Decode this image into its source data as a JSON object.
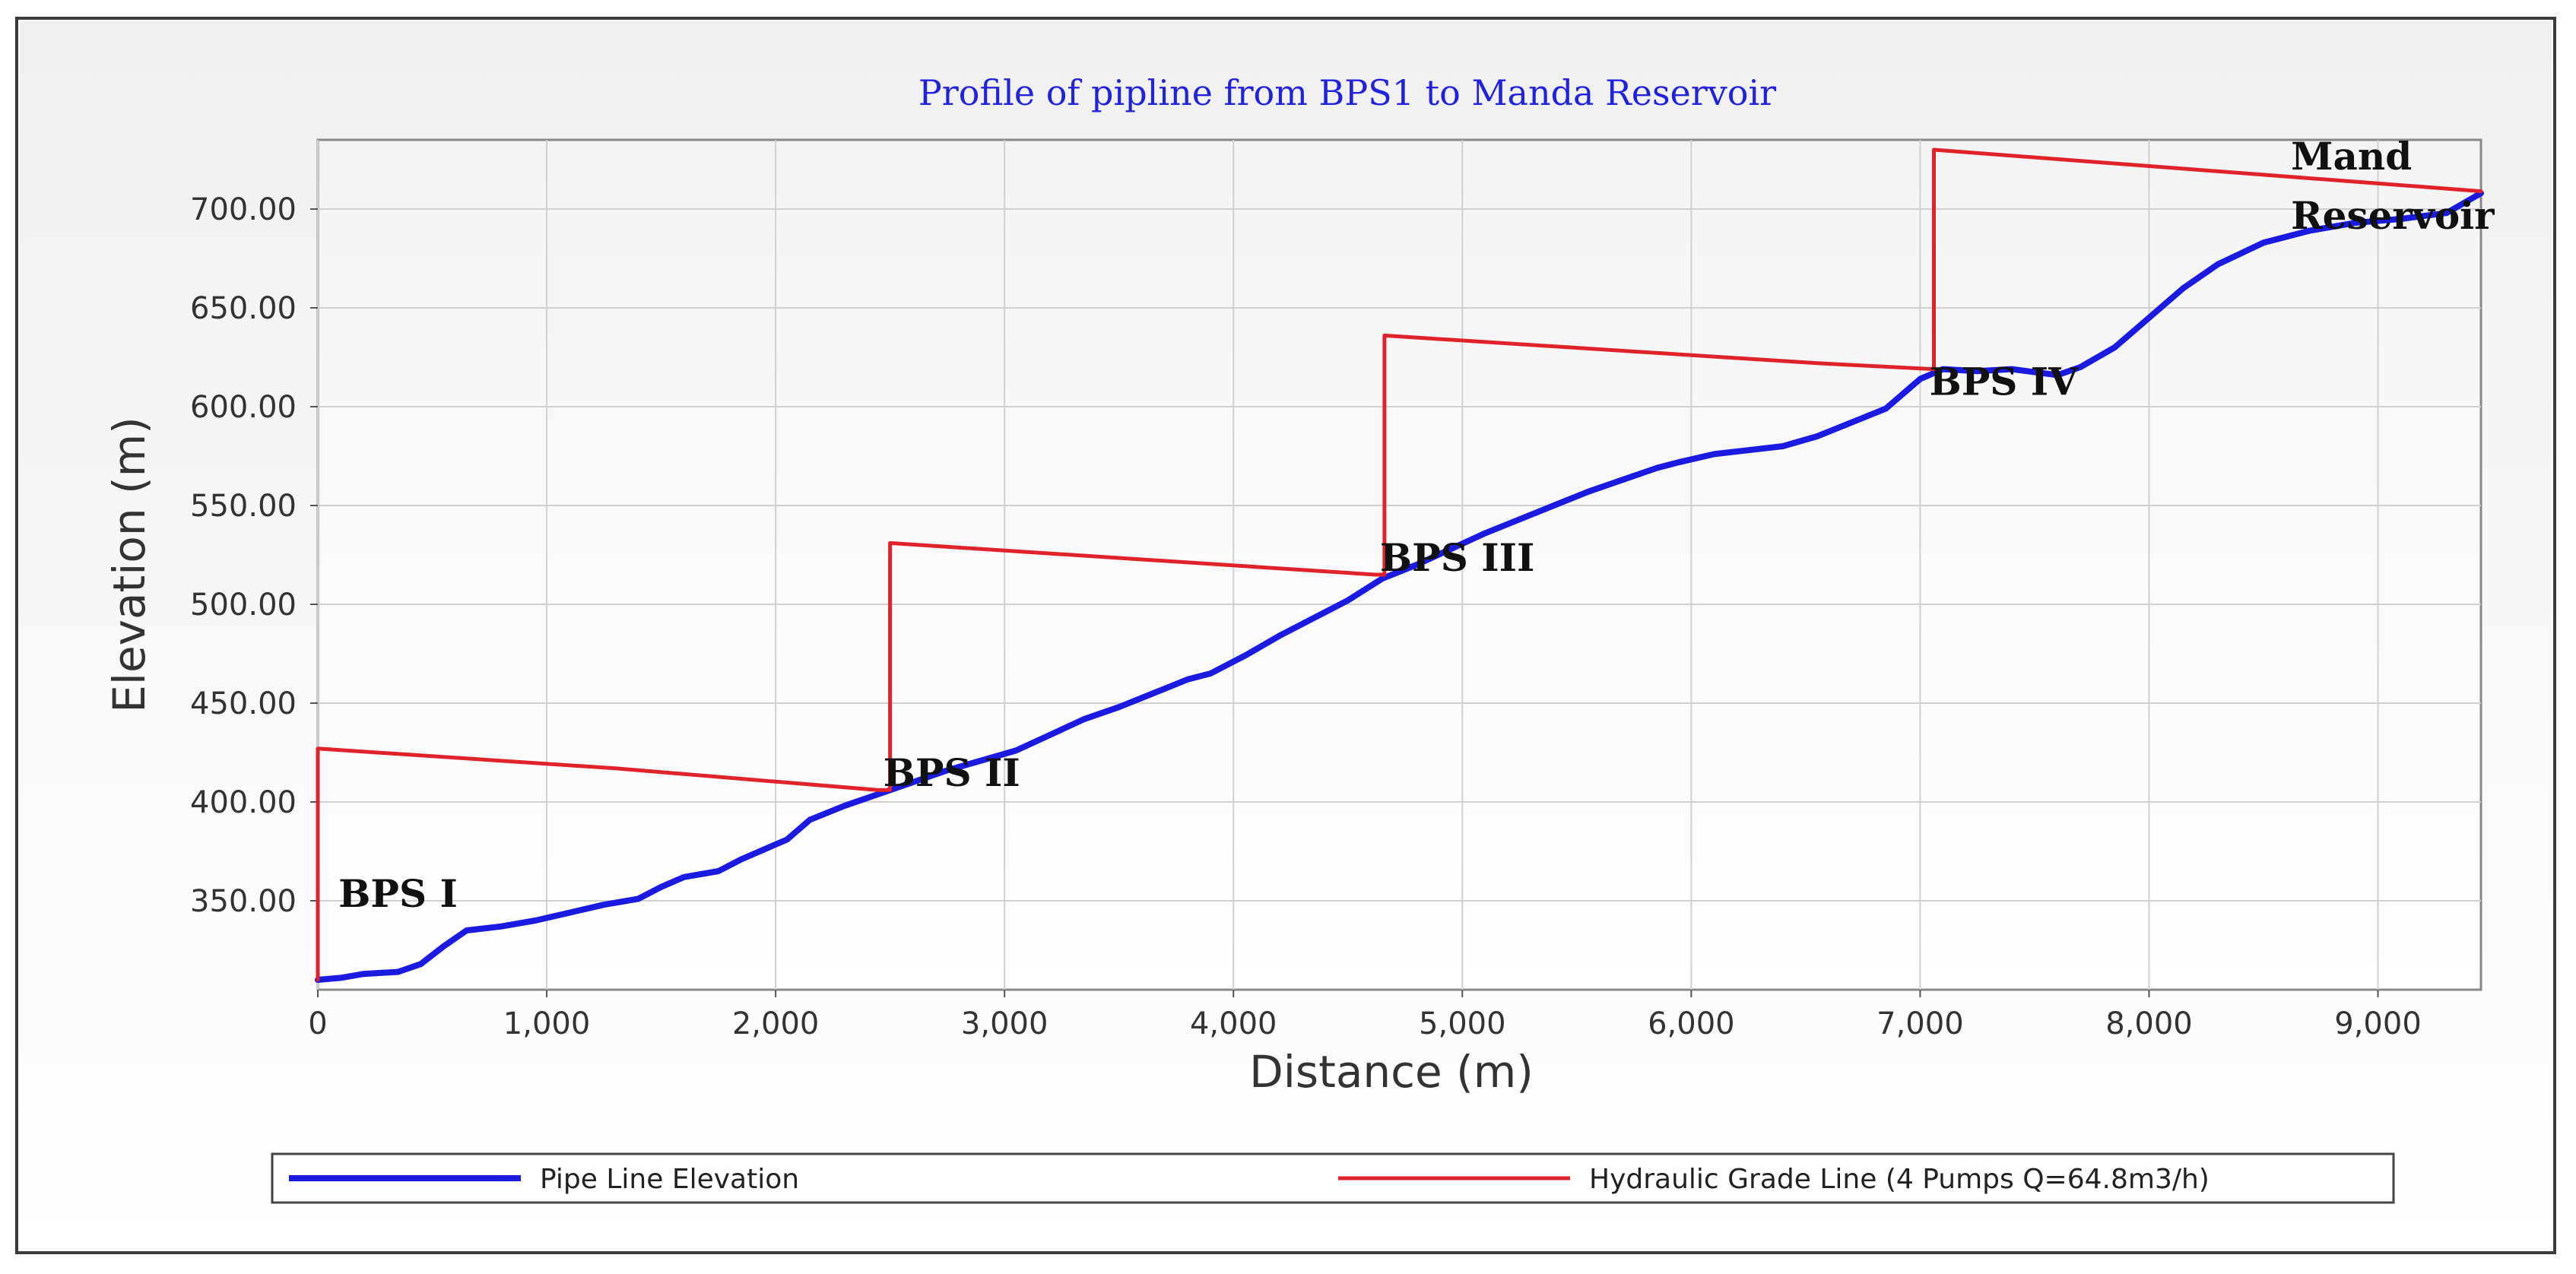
{
  "chart_data": {
    "type": "line",
    "title": "Profile of pipline from BPS1 to Manda Reservoir",
    "xlabel": "Distance (m)",
    "ylabel": "Elevation (m)",
    "xlim": [
      0,
      9450
    ],
    "ylim": [
      305,
      735
    ],
    "x_ticks": [
      0,
      1000,
      2000,
      3000,
      4000,
      5000,
      6000,
      7000,
      8000,
      9000
    ],
    "x_tick_labels": [
      "0",
      "1,000",
      "2,000",
      "3,000",
      "4,000",
      "5,000",
      "6,000",
      "7,000",
      "8,000",
      "9,000"
    ],
    "y_ticks": [
      350,
      400,
      450,
      500,
      550,
      600,
      650,
      700
    ],
    "y_tick_labels": [
      "350.00",
      "400.00",
      "450.00",
      "500.00",
      "550.00",
      "600.00",
      "650.00",
      "700.00"
    ],
    "grid": true,
    "legend_position": "bottom",
    "series": [
      {
        "name": "Pipe Line Elevation",
        "color": "#1a1ae0",
        "points": [
          [
            0,
            310
          ],
          [
            100,
            311
          ],
          [
            200,
            313
          ],
          [
            350,
            314
          ],
          [
            450,
            318
          ],
          [
            550,
            327
          ],
          [
            650,
            335
          ],
          [
            800,
            337
          ],
          [
            950,
            340
          ],
          [
            1100,
            344
          ],
          [
            1250,
            348
          ],
          [
            1400,
            351
          ],
          [
            1500,
            357
          ],
          [
            1600,
            362
          ],
          [
            1750,
            365
          ],
          [
            1850,
            371
          ],
          [
            1950,
            376
          ],
          [
            2050,
            381
          ],
          [
            2150,
            391
          ],
          [
            2300,
            398
          ],
          [
            2450,
            404
          ],
          [
            2600,
            410
          ],
          [
            2750,
            416
          ],
          [
            2900,
            421
          ],
          [
            3050,
            426
          ],
          [
            3200,
            434
          ],
          [
            3350,
            442
          ],
          [
            3500,
            448
          ],
          [
            3650,
            455
          ],
          [
            3800,
            462
          ],
          [
            3900,
            465
          ],
          [
            4050,
            474
          ],
          [
            4200,
            484
          ],
          [
            4350,
            493
          ],
          [
            4500,
            502
          ],
          [
            4650,
            513
          ],
          [
            4800,
            520
          ],
          [
            4950,
            528
          ],
          [
            5100,
            536
          ],
          [
            5250,
            543
          ],
          [
            5400,
            550
          ],
          [
            5550,
            557
          ],
          [
            5700,
            563
          ],
          [
            5850,
            569
          ],
          [
            5950,
            572
          ],
          [
            6100,
            576
          ],
          [
            6250,
            578
          ],
          [
            6400,
            580
          ],
          [
            6550,
            585
          ],
          [
            6700,
            592
          ],
          [
            6850,
            599
          ],
          [
            7000,
            614
          ],
          [
            7100,
            619
          ],
          [
            7250,
            618
          ],
          [
            7400,
            619
          ],
          [
            7600,
            616
          ],
          [
            7700,
            620
          ],
          [
            7850,
            630
          ],
          [
            8000,
            645
          ],
          [
            8150,
            660
          ],
          [
            8300,
            672
          ],
          [
            8500,
            683
          ],
          [
            8700,
            689
          ],
          [
            8900,
            693
          ],
          [
            9100,
            695
          ],
          [
            9300,
            698
          ],
          [
            9450,
            708
          ]
        ]
      },
      {
        "name": "Hydraulic Grade Line (4 Pumps Q=64.8m3/h)",
        "color": "#e0222a",
        "points": [
          [
            0,
            310
          ],
          [
            0,
            427
          ],
          [
            1300,
            417
          ],
          [
            2450,
            406
          ],
          [
            2500,
            406
          ],
          [
            2500,
            531
          ],
          [
            4620,
            515
          ],
          [
            4660,
            515
          ],
          [
            4660,
            636
          ],
          [
            6550,
            622
          ],
          [
            7060,
            619
          ],
          [
            7060,
            730
          ],
          [
            9450,
            709
          ]
        ]
      }
    ],
    "annotations": [
      {
        "text": "BPS I",
        "x": 90,
        "y": 347
      },
      {
        "text": "BPS II",
        "x": 2470,
        "y": 408
      },
      {
        "text": "BPS III",
        "x": 4640,
        "y": 517
      },
      {
        "text": "BPS IV",
        "x": 7040,
        "y": 606
      },
      {
        "text": "Mand",
        "x": 8620,
        "y": 720
      },
      {
        "text": "Reservoir",
        "x": 8620,
        "y": 690
      }
    ]
  }
}
